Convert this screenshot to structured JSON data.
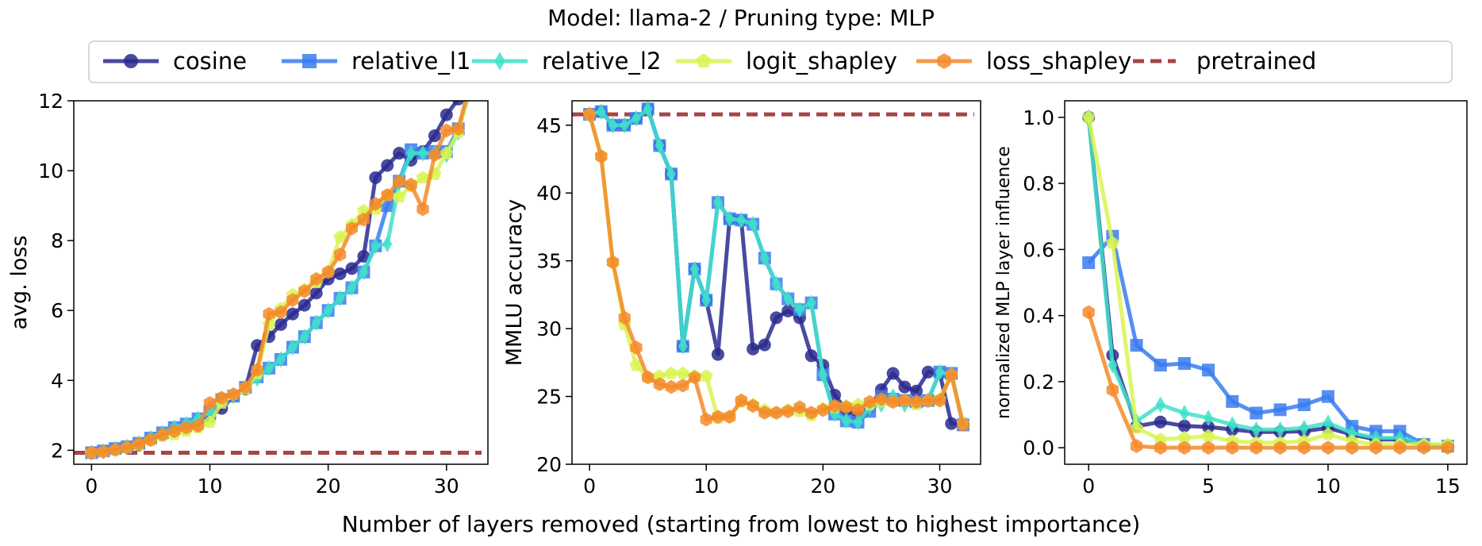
{
  "suptitle": "Model: llama-2 / Pruning type: MLP",
  "xlabel": "Number of layers removed (starting from lowest to highest importance)",
  "legend": [
    {
      "name": "cosine",
      "color": "#2a2a8f",
      "marker": "circle"
    },
    {
      "name": "relative_l1",
      "color": "#3a7bf0",
      "marker": "square"
    },
    {
      "name": "relative_l2",
      "color": "#40e0c8",
      "marker": "diamond"
    },
    {
      "name": "logit_shapley",
      "color": "#d8f550",
      "marker": "pentagon"
    },
    {
      "name": "loss_shapley",
      "color": "#f58a2a",
      "marker": "hexagon"
    },
    {
      "name": "pretrained",
      "color": "#a84444",
      "marker": "dashed"
    }
  ],
  "chart_data": [
    {
      "type": "line",
      "ylabel": "avg. loss",
      "xlim": [
        -1.5,
        33.5
      ],
      "ylim": [
        1.6,
        12
      ],
      "xticks": [
        0,
        10,
        20,
        30
      ],
      "yticks": [
        2,
        4,
        6,
        8,
        10,
        12
      ],
      "baseline": 1.93,
      "series": [
        {
          "name": "cosine",
          "x": [
            0,
            1,
            2,
            3,
            4,
            5,
            6,
            7,
            8,
            9,
            10,
            11,
            12,
            13,
            14,
            15,
            16,
            17,
            18,
            19,
            20,
            21,
            22,
            23,
            24,
            25,
            26,
            27,
            28,
            29,
            30,
            31,
            32
          ],
          "y": [
            1.93,
            1.97,
            2.02,
            2.08,
            2.15,
            2.3,
            2.45,
            2.55,
            2.65,
            2.75,
            2.95,
            3.2,
            3.55,
            3.75,
            5.0,
            5.25,
            5.6,
            5.9,
            6.15,
            6.5,
            6.9,
            7.05,
            7.2,
            7.55,
            9.8,
            10.15,
            10.5,
            10.3,
            10.55,
            11.0,
            11.6,
            12.05,
            12.6
          ]
        },
        {
          "name": "relative_l1",
          "x": [
            0,
            1,
            2,
            3,
            4,
            5,
            6,
            7,
            8,
            9,
            10,
            11,
            12,
            13,
            14,
            15,
            16,
            17,
            18,
            19,
            20,
            21,
            22,
            23,
            24,
            25,
            26,
            27,
            28,
            29,
            30,
            31,
            32
          ],
          "y": [
            1.93,
            1.98,
            2.05,
            2.1,
            2.2,
            2.35,
            2.5,
            2.65,
            2.75,
            2.9,
            3.1,
            3.45,
            3.55,
            3.8,
            4.1,
            4.35,
            4.6,
            4.95,
            5.25,
            5.65,
            6.0,
            6.35,
            6.65,
            7.1,
            7.85,
            9.0,
            9.7,
            10.6,
            10.5,
            10.55,
            10.55,
            11.2,
            12.3
          ]
        },
        {
          "name": "relative_l2",
          "x": [
            0,
            1,
            2,
            3,
            4,
            5,
            6,
            7,
            8,
            9,
            10,
            11,
            12,
            13,
            14,
            15,
            16,
            17,
            18,
            19,
            20,
            21,
            22,
            23,
            24,
            25,
            26,
            27,
            28,
            29,
            30,
            31,
            32
          ],
          "y": [
            1.93,
            1.97,
            2.04,
            2.1,
            2.2,
            2.35,
            2.5,
            2.65,
            2.75,
            2.9,
            3.1,
            3.45,
            3.55,
            3.8,
            4.05,
            4.35,
            4.6,
            4.95,
            5.25,
            5.65,
            6.0,
            6.35,
            6.65,
            7.1,
            7.85,
            7.9,
            9.65,
            10.5,
            10.5,
            10.5,
            10.45,
            11.1,
            12.4
          ]
        },
        {
          "name": "logit_shapley",
          "x": [
            0,
            1,
            2,
            3,
            4,
            5,
            6,
            7,
            8,
            9,
            10,
            11,
            12,
            13,
            14,
            15,
            16,
            17,
            18,
            19,
            20,
            21,
            22,
            23,
            24,
            25,
            26,
            27,
            28,
            29,
            30,
            31,
            32
          ],
          "y": [
            1.93,
            1.96,
            2.0,
            2.07,
            2.15,
            2.28,
            2.4,
            2.45,
            2.55,
            2.65,
            2.8,
            3.35,
            3.6,
            3.75,
            4.2,
            5.6,
            6.05,
            6.45,
            6.6,
            6.8,
            7.1,
            8.1,
            8.45,
            8.85,
            8.9,
            9.3,
            9.25,
            9.55,
            9.8,
            9.9,
            10.5,
            11.1,
            12.4
          ]
        },
        {
          "name": "loss_shapley",
          "x": [
            0,
            1,
            2,
            3,
            4,
            5,
            6,
            7,
            8,
            9,
            10,
            11,
            12,
            13,
            14,
            15,
            16,
            17,
            18,
            19,
            20,
            21,
            22,
            23,
            24,
            25,
            26,
            27,
            28,
            29,
            30,
            31,
            32
          ],
          "y": [
            1.93,
            1.96,
            2.02,
            2.08,
            2.18,
            2.3,
            2.45,
            2.55,
            2.65,
            2.7,
            3.35,
            3.5,
            3.6,
            3.8,
            4.3,
            5.9,
            5.95,
            6.3,
            6.55,
            6.9,
            7.1,
            7.6,
            8.35,
            8.6,
            9.05,
            9.3,
            9.7,
            9.6,
            8.9,
            10.45,
            11.15,
            11.2,
            12.5
          ]
        }
      ]
    },
    {
      "type": "line",
      "ylabel": "MMLU accuracy",
      "xlim": [
        -1.5,
        33.5
      ],
      "ylim": [
        20,
        46.8
      ],
      "xticks": [
        0,
        10,
        20,
        30
      ],
      "yticks": [
        20,
        25,
        30,
        35,
        40,
        45
      ],
      "baseline": 45.8,
      "series": [
        {
          "name": "cosine",
          "x": [
            0,
            1,
            2,
            3,
            4,
            5,
            6,
            7,
            8,
            9,
            10,
            11,
            12,
            13,
            14,
            15,
            16,
            17,
            18,
            19,
            20,
            21,
            22,
            23,
            24,
            25,
            26,
            27,
            28,
            29,
            30,
            31,
            32
          ],
          "y": [
            45.8,
            46.0,
            45.0,
            45.0,
            45.5,
            46.2,
            43.5,
            41.4,
            28.7,
            34.4,
            32.1,
            28.1,
            38.1,
            38.0,
            28.5,
            28.8,
            30.8,
            31.3,
            30.8,
            28.0,
            27.3,
            25.1,
            24.0,
            23.5,
            24.2,
            25.5,
            26.7,
            25.7,
            25.4,
            26.8,
            26.7,
            23.0,
            23.0
          ]
        },
        {
          "name": "relative_l1",
          "x": [
            0,
            1,
            2,
            3,
            4,
            5,
            6,
            7,
            8,
            9,
            10,
            11,
            12,
            13,
            14,
            15,
            16,
            17,
            18,
            19,
            20,
            21,
            22,
            23,
            24,
            25,
            26,
            27,
            28,
            29,
            30,
            31,
            32
          ],
          "y": [
            45.8,
            46.0,
            45.0,
            45.0,
            45.5,
            46.2,
            43.5,
            41.4,
            28.7,
            34.4,
            32.1,
            39.3,
            38.1,
            38.0,
            37.7,
            35.2,
            33.3,
            32.2,
            31.4,
            31.9,
            26.6,
            23.7,
            23.2,
            23.1,
            23.9,
            25.0,
            24.8,
            24.7,
            24.6,
            24.7,
            26.8,
            26.7,
            22.9
          ]
        },
        {
          "name": "relative_l2",
          "x": [
            0,
            1,
            2,
            3,
            4,
            5,
            6,
            7,
            8,
            9,
            10,
            11,
            12,
            13,
            14,
            15,
            16,
            17,
            18,
            19,
            20,
            21,
            22,
            23,
            24,
            25,
            26,
            27,
            28,
            29,
            30,
            31,
            32
          ],
          "y": [
            45.8,
            46.0,
            45.0,
            45.0,
            45.5,
            46.2,
            43.5,
            41.4,
            28.7,
            34.4,
            32.1,
            39.3,
            38.1,
            38.0,
            37.7,
            35.2,
            33.3,
            32.2,
            31.4,
            31.9,
            26.6,
            23.7,
            23.2,
            23.1,
            24.2,
            24.4,
            25.0,
            24.4,
            24.6,
            24.7,
            26.8,
            26.6,
            23.0
          ]
        },
        {
          "name": "logit_shapley",
          "x": [
            0,
            1,
            2,
            3,
            4,
            5,
            6,
            7,
            8,
            9,
            10,
            11,
            12,
            13,
            14,
            15,
            16,
            17,
            18,
            19,
            20,
            21,
            22,
            23,
            24,
            25,
            26,
            27,
            28,
            29,
            30,
            31,
            32
          ],
          "y": [
            45.8,
            42.7,
            34.9,
            30.3,
            27.3,
            26.4,
            26.5,
            26.7,
            26.7,
            26.5,
            26.5,
            23.4,
            23.5,
            24.6,
            24.4,
            24.0,
            23.8,
            24.0,
            23.9,
            23.6,
            24.1,
            24.2,
            24.3,
            24.4,
            24.4,
            24.6,
            24.6,
            24.7,
            24.4,
            24.7,
            24.8,
            26.6,
            23.0
          ]
        },
        {
          "name": "loss_shapley",
          "x": [
            0,
            1,
            2,
            3,
            4,
            5,
            6,
            7,
            8,
            9,
            10,
            11,
            12,
            13,
            14,
            15,
            16,
            17,
            18,
            19,
            20,
            21,
            22,
            23,
            24,
            25,
            26,
            27,
            28,
            29,
            30,
            31,
            32
          ],
          "y": [
            45.8,
            42.7,
            34.9,
            30.8,
            28.6,
            26.4,
            25.9,
            25.7,
            25.8,
            26.4,
            23.3,
            23.5,
            23.5,
            24.7,
            24.3,
            23.8,
            23.8,
            23.9,
            24.2,
            23.8,
            24.0,
            24.3,
            24.2,
            24.0,
            24.6,
            24.8,
            24.6,
            24.7,
            24.6,
            24.7,
            24.7,
            26.6,
            22.9
          ]
        }
      ]
    },
    {
      "type": "line",
      "ylabel": "normalized MLP layer influence",
      "xlim": [
        -1.0,
        15.8
      ],
      "ylim": [
        -0.05,
        1.05
      ],
      "xticks": [
        0,
        5,
        10,
        15
      ],
      "yticks": [
        0.0,
        0.2,
        0.4,
        0.6,
        0.8,
        1.0
      ],
      "yticklabels": [
        "0.0",
        "0.2",
        "0.4",
        "0.6",
        "0.8",
        "1.0"
      ],
      "series": [
        {
          "name": "cosine",
          "x": [
            0,
            1,
            2,
            3,
            4,
            5,
            6,
            7,
            8,
            9,
            10,
            11,
            12,
            13,
            14,
            15
          ],
          "y": [
            1.0,
            0.28,
            0.065,
            0.078,
            0.066,
            0.063,
            0.055,
            0.048,
            0.048,
            0.05,
            0.06,
            0.04,
            0.025,
            0.025,
            0.01,
            0.005
          ]
        },
        {
          "name": "relative_l1",
          "x": [
            0,
            1,
            2,
            3,
            4,
            5,
            6,
            7,
            8,
            9,
            10,
            11,
            12,
            13,
            14,
            15
          ],
          "y": [
            0.56,
            0.64,
            0.31,
            0.25,
            0.255,
            0.235,
            0.14,
            0.105,
            0.115,
            0.13,
            0.155,
            0.065,
            0.05,
            0.05,
            0.01,
            0.005
          ]
        },
        {
          "name": "relative_l2",
          "x": [
            0,
            1,
            2,
            3,
            4,
            5,
            6,
            7,
            8,
            9,
            10,
            11,
            12,
            13,
            14,
            15
          ],
          "y": [
            1.0,
            0.25,
            0.08,
            0.13,
            0.105,
            0.09,
            0.07,
            0.055,
            0.055,
            0.06,
            0.075,
            0.045,
            0.03,
            0.03,
            0.01,
            0.005
          ]
        },
        {
          "name": "logit_shapley",
          "x": [
            0,
            1,
            2,
            3,
            4,
            5,
            6,
            7,
            8,
            9,
            10,
            11,
            12,
            13,
            14,
            15
          ],
          "y": [
            1.0,
            0.62,
            0.06,
            0.025,
            0.03,
            0.035,
            0.02,
            0.015,
            0.015,
            0.02,
            0.04,
            0.02,
            0.01,
            0.01,
            0.01,
            0.01
          ]
        },
        {
          "name": "loss_shapley",
          "x": [
            0,
            1,
            2,
            3,
            4,
            5,
            6,
            7,
            8,
            9,
            10,
            11,
            12,
            13,
            14,
            15
          ],
          "y": [
            0.41,
            0.175,
            0.005,
            0.0,
            0.0,
            0.0,
            0.0,
            0.0,
            0.0,
            0.0,
            0.0,
            0.0,
            0.0,
            0.0,
            0.0,
            0.0
          ]
        }
      ]
    }
  ]
}
